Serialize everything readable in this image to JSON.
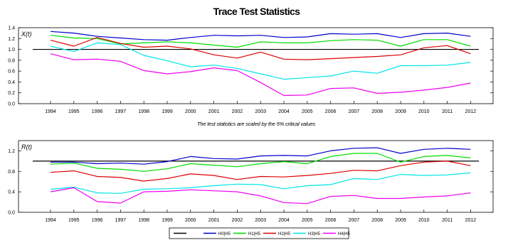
{
  "page_title": "Trace Test Statistics",
  "colors": {
    "ref": "#000000",
    "H0": "#0000cc",
    "H1": "#00dd00",
    "H2": "#dd0000",
    "H3": "#00e5e5",
    "H4": "#ee00ee"
  },
  "chart_data": [
    {
      "type": "line",
      "panel_label": "X(t)",
      "caption": "The test statistics are scaled by the 5% critical values",
      "x": [
        1994,
        1995,
        1996,
        1997,
        1998,
        1999,
        2000,
        2001,
        2002,
        2003,
        2004,
        2005,
        2006,
        2007,
        2008,
        2009,
        2010,
        2011,
        2012
      ],
      "ylim": [
        0,
        1.4
      ],
      "yticks": [
        "0.0",
        "0.2",
        "0.4",
        "0.6",
        "0.8",
        "1.0",
        "1.2",
        "1.4"
      ],
      "reference_line": 1.0,
      "grid": false,
      "series": [
        {
          "name": "H0|H5",
          "color_key": "H0",
          "values": [
            1.33,
            1.3,
            1.24,
            1.21,
            1.18,
            1.17,
            1.22,
            1.26,
            1.25,
            1.26,
            1.22,
            1.23,
            1.29,
            1.28,
            1.29,
            1.22,
            1.29,
            1.3,
            1.24
          ]
        },
        {
          "name": "H1|H5",
          "color_key": "H1",
          "values": [
            1.26,
            1.21,
            1.2,
            1.1,
            1.12,
            1.14,
            1.12,
            1.08,
            1.04,
            1.14,
            1.12,
            1.12,
            1.16,
            1.18,
            1.17,
            1.06,
            1.18,
            1.18,
            1.06
          ]
        },
        {
          "name": "H2|H5",
          "color_key": "H2",
          "values": [
            1.17,
            1.06,
            1.22,
            1.11,
            1.04,
            1.06,
            1.01,
            0.9,
            0.84,
            0.95,
            0.82,
            0.81,
            0.83,
            0.85,
            0.87,
            0.9,
            1.03,
            1.07,
            0.92
          ]
        },
        {
          "name": "H3|H5",
          "color_key": "H3",
          "values": [
            1.06,
            0.96,
            1.12,
            1.09,
            0.89,
            0.79,
            0.68,
            0.71,
            0.65,
            0.55,
            0.45,
            0.48,
            0.51,
            0.6,
            0.56,
            0.7,
            0.7,
            0.71,
            0.76
          ]
        },
        {
          "name": "H4|H5",
          "color_key": "H4",
          "values": [
            0.92,
            0.81,
            0.82,
            0.78,
            0.61,
            0.55,
            0.59,
            0.66,
            0.61,
            0.39,
            0.15,
            0.16,
            0.28,
            0.29,
            0.19,
            0.21,
            0.25,
            0.3,
            0.38
          ]
        }
      ]
    },
    {
      "type": "line",
      "panel_label": "R(t)",
      "x": [
        1994,
        1995,
        1996,
        1997,
        1998,
        1999,
        2000,
        2001,
        2002,
        2003,
        2004,
        2005,
        2006,
        2007,
        2008,
        2009,
        2010,
        2011,
        2012
      ],
      "ylim": [
        0,
        1.4
      ],
      "yticks": [
        "0.0",
        "0.4",
        "0.8",
        "1.2"
      ],
      "reference_line": 1.0,
      "grid": false,
      "series": [
        {
          "name": "H0|H5",
          "color_key": "H0",
          "values": [
            0.98,
            0.98,
            0.95,
            0.96,
            0.94,
            0.99,
            1.09,
            1.05,
            1.04,
            1.1,
            1.11,
            1.1,
            1.2,
            1.25,
            1.26,
            1.15,
            1.23,
            1.25,
            1.23
          ]
        },
        {
          "name": "H1|H5",
          "color_key": "H1",
          "values": [
            0.94,
            0.96,
            0.86,
            0.84,
            0.8,
            0.85,
            0.95,
            0.92,
            0.89,
            0.95,
            0.99,
            0.95,
            1.09,
            1.15,
            1.15,
            0.98,
            1.09,
            1.11,
            1.06
          ]
        },
        {
          "name": "H2|H5",
          "color_key": "H2",
          "values": [
            0.78,
            0.81,
            0.7,
            0.68,
            0.61,
            0.66,
            0.75,
            0.72,
            0.64,
            0.7,
            0.69,
            0.72,
            0.76,
            0.82,
            0.81,
            0.91,
            0.98,
            1.0,
            0.91
          ]
        },
        {
          "name": "H3|H5",
          "color_key": "H3",
          "values": [
            0.45,
            0.49,
            0.38,
            0.37,
            0.45,
            0.46,
            0.48,
            0.52,
            0.55,
            0.54,
            0.46,
            0.52,
            0.54,
            0.66,
            0.64,
            0.74,
            0.72,
            0.73,
            0.77
          ]
        },
        {
          "name": "H4|H5",
          "color_key": "H4",
          "values": [
            0.4,
            0.48,
            0.21,
            0.18,
            0.4,
            0.41,
            0.44,
            0.42,
            0.4,
            0.32,
            0.19,
            0.17,
            0.31,
            0.33,
            0.27,
            0.27,
            0.3,
            0.32,
            0.38
          ]
        }
      ]
    }
  ]
}
